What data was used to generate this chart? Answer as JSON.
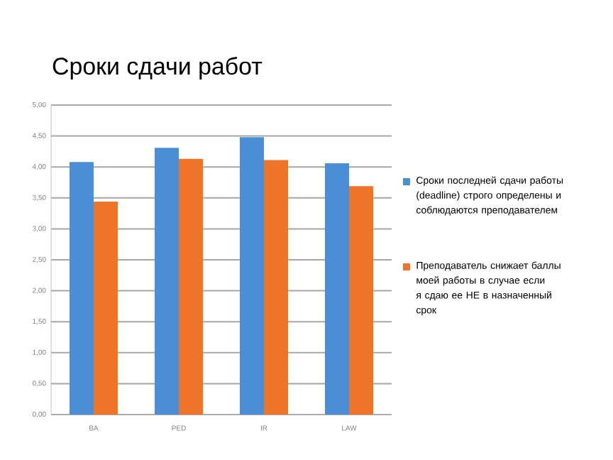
{
  "chart_data": {
    "type": "bar",
    "title": "Сроки сдачи работ",
    "categories": [
      "BA",
      "PED",
      "IR",
      "LAW"
    ],
    "series": [
      {
        "name": "Сроки последней сдачи работы (deadline) строго определены и соблюдаются преподавателем",
        "color": "#4a8fd6",
        "values": [
          4.08,
          4.31,
          4.48,
          4.06
        ]
      },
      {
        "name": "Преподаватель снижает баллы моей работы в случае если я сдаю ее НЕ в назначенный срок",
        "color": "#ed7428",
        "values": [
          3.44,
          4.13,
          4.11,
          3.69
        ]
      }
    ],
    "ylim": [
      0,
      5
    ],
    "yticks": [
      {
        "value": 0,
        "label": "0,00"
      },
      {
        "value": 0.5,
        "label": "0,50"
      },
      {
        "value": 1,
        "label": "1,00"
      },
      {
        "value": 1.5,
        "label": "1,50"
      },
      {
        "value": 2,
        "label": "2,00"
      },
      {
        "value": 2.5,
        "label": "2,50"
      },
      {
        "value": 3,
        "label": "3,00"
      },
      {
        "value": 3.5,
        "label": "3,50"
      },
      {
        "value": 4,
        "label": "4,00"
      },
      {
        "value": 4.5,
        "label": "4,50"
      },
      {
        "value": 5,
        "label": "5,00"
      }
    ],
    "grid": "y",
    "legend": "right"
  }
}
